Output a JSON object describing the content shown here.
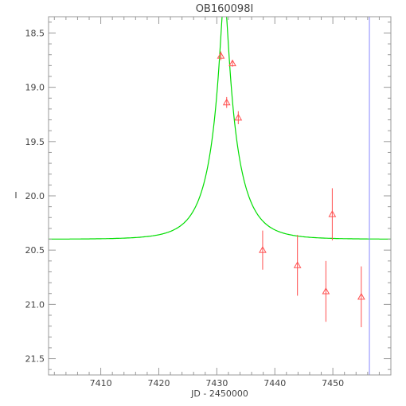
{
  "chart_data": {
    "type": "scatter",
    "title": "OB160098I",
    "xlabel": "JD - 2450000",
    "ylabel": "I",
    "xlim": [
      7401.0,
      7460.0
    ],
    "ylim": [
      21.65,
      18.35
    ],
    "y_inverted": true,
    "grid": false,
    "x_ticks": [
      7410,
      7420,
      7430,
      7440,
      7450
    ],
    "x_tick_labels": [
      "7410",
      "7420",
      "7430",
      "7440",
      "7450"
    ],
    "y_ticks": [
      18.5,
      19.0,
      19.5,
      20.0,
      20.5,
      21.0,
      21.5
    ],
    "y_tick_labels": [
      "18.5",
      "19.0",
      "19.5",
      "20.0",
      "20.5",
      "21.0",
      "21.5"
    ],
    "x_minor_step": 2,
    "y_minor_step": 0.1,
    "series": [
      {
        "kind": "points",
        "marker": "triangle-open",
        "color": "#ff5050",
        "points": [
          {
            "x": 7430.7,
            "y": 18.71,
            "err": 0.04
          },
          {
            "x": 7431.7,
            "y": 19.14,
            "err": 0.05
          },
          {
            "x": 7432.7,
            "y": 18.78,
            "err": 0.03
          },
          {
            "x": 7433.7,
            "y": 19.28,
            "err": 0.06
          },
          {
            "x": 7437.9,
            "y": 20.5,
            "err": 0.18
          },
          {
            "x": 7443.9,
            "y": 20.64,
            "err": 0.28
          },
          {
            "x": 7448.8,
            "y": 20.88,
            "err": 0.28
          },
          {
            "x": 7449.9,
            "y": 20.17,
            "err": 0.24
          },
          {
            "x": 7454.9,
            "y": 20.93,
            "err": 0.28
          }
        ]
      },
      {
        "kind": "model",
        "color": "#00dd00",
        "model": {
          "t0": 7431.3,
          "u0": 0.12,
          "tE": 5.0,
          "baseline": 20.4,
          "fs": 0.93
        }
      }
    ],
    "vertical_line": {
      "x": 7456.3,
      "color": "#8888ff"
    }
  }
}
